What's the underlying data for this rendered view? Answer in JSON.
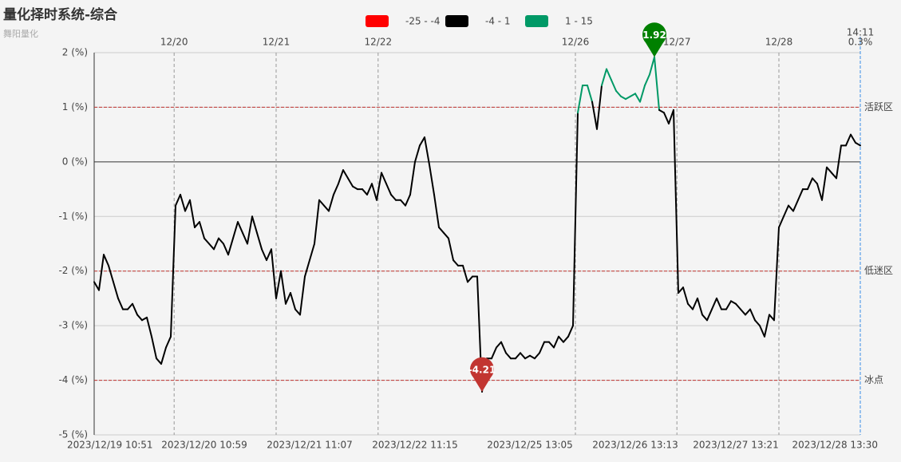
{
  "chart_data": {
    "type": "line",
    "title": "量化择时系统-综合",
    "subtitle": "舞阳量化",
    "xlim": [
      0,
      160
    ],
    "ylim": [
      -5,
      2
    ],
    "yticks": [
      {
        "value": 2,
        "label": "2 (%)"
      },
      {
        "value": 1,
        "label": "1 (%)"
      },
      {
        "value": 0,
        "label": "0 (%)"
      },
      {
        "value": -1,
        "label": "-1 (%)"
      },
      {
        "value": -2,
        "label": "-2 (%)"
      },
      {
        "value": -3,
        "label": "-3 (%)"
      },
      {
        "value": -4,
        "label": "-4 (%)"
      },
      {
        "value": -5,
        "label": "-5 (%)"
      }
    ],
    "top_xticks": [
      {
        "value": 16.7,
        "label": "12/20"
      },
      {
        "value": 38,
        "label": "12/21"
      },
      {
        "value": 59.3,
        "label": "12/22"
      },
      {
        "value": 100.5,
        "label": "12/26"
      },
      {
        "value": 121.7,
        "label": "12/27"
      },
      {
        "value": 143,
        "label": "12/28"
      }
    ],
    "xticks": [
      {
        "value": 0,
        "label": "2023/12/19 10:51"
      },
      {
        "value": 23,
        "label": "2023/12/20 10:59"
      },
      {
        "value": 45,
        "label": "2023/12/21 11:07"
      },
      {
        "value": 67,
        "label": "2023/12/22 11:15"
      },
      {
        "value": 91,
        "label": "2023/12/25 13:05"
      },
      {
        "value": 113,
        "label": "2023/12/26 13:13"
      },
      {
        "value": 134,
        "label": "2023/12/27 13:21"
      },
      {
        "value": 159,
        "label": "2023/12/28 13:30"
      }
    ],
    "pieces": [
      {
        "label": "-25 - -4",
        "min": -25,
        "max": -4,
        "color": "#ff0000"
      },
      {
        "label": "-4 - 1",
        "min": -4,
        "max": 1,
        "color": "#000000"
      },
      {
        "label": "1 - 15",
        "min": 1,
        "max": 15,
        "color": "#009966"
      }
    ],
    "marklines": [
      {
        "value": 1,
        "label": "活跃区"
      },
      {
        "value": -2,
        "label": "低迷区"
      },
      {
        "value": -4,
        "label": "冰点"
      }
    ],
    "markline_color": "#c23531",
    "pins": [
      {
        "x": 117,
        "value": 1.92,
        "color": "#008000"
      },
      {
        "x": 81,
        "value": -4.21,
        "color": "#c23531"
      }
    ],
    "end_label": {
      "time": "14:11",
      "value": 0.3,
      "label": "0.3%",
      "color": "#3a8ee6"
    },
    "values": [
      -2.2,
      -2.35,
      -1.7,
      -1.9,
      -2.2,
      -2.5,
      -2.7,
      -2.7,
      -2.6,
      -2.8,
      -2.9,
      -2.85,
      -3.2,
      -3.6,
      -3.7,
      -3.4,
      -3.2,
      -0.8,
      -0.6,
      -0.9,
      -0.7,
      -1.2,
      -1.1,
      -1.4,
      -1.5,
      -1.6,
      -1.4,
      -1.5,
      -1.7,
      -1.4,
      -1.1,
      -1.3,
      -1.5,
      -1.0,
      -1.3,
      -1.6,
      -1.8,
      -1.6,
      -2.5,
      -2.0,
      -2.6,
      -2.4,
      -2.7,
      -2.8,
      -2.1,
      -1.8,
      -1.5,
      -0.7,
      -0.8,
      -0.9,
      -0.6,
      -0.4,
      -0.15,
      -0.3,
      -0.45,
      -0.5,
      -0.5,
      -0.6,
      -0.4,
      -0.7,
      -0.2,
      -0.4,
      -0.6,
      -0.7,
      -0.7,
      -0.8,
      -0.6,
      0.0,
      0.3,
      0.45,
      -0.05,
      -0.6,
      -1.2,
      -1.3,
      -1.4,
      -1.8,
      -1.9,
      -1.9,
      -2.2,
      -2.1,
      -2.1,
      -4.21,
      -3.6,
      -3.6,
      -3.4,
      -3.3,
      -3.5,
      -3.6,
      -3.6,
      -3.5,
      -3.6,
      -3.55,
      -3.6,
      -3.5,
      -3.3,
      -3.3,
      -3.4,
      -3.2,
      -3.3,
      -3.2,
      -3.0,
      0.9,
      1.4,
      1.4,
      1.1,
      0.6,
      1.4,
      1.7,
      1.5,
      1.3,
      1.2,
      1.15,
      1.2,
      1.25,
      1.1,
      1.4,
      1.6,
      1.92,
      0.95,
      0.9,
      0.7,
      0.95,
      -2.4,
      -2.3,
      -2.6,
      -2.7,
      -2.5,
      -2.8,
      -2.9,
      -2.7,
      -2.5,
      -2.7,
      -2.7,
      -2.55,
      -2.6,
      -2.7,
      -2.8,
      -2.7,
      -2.9,
      -3.0,
      -3.2,
      -2.8,
      -2.9,
      -1.2,
      -1.0,
      -0.8,
      -0.9,
      -0.7,
      -0.5,
      -0.5,
      -0.3,
      -0.4,
      -0.7,
      -0.1,
      -0.2,
      -0.3,
      0.3,
      0.3,
      0.5,
      0.35,
      0.3
    ]
  }
}
